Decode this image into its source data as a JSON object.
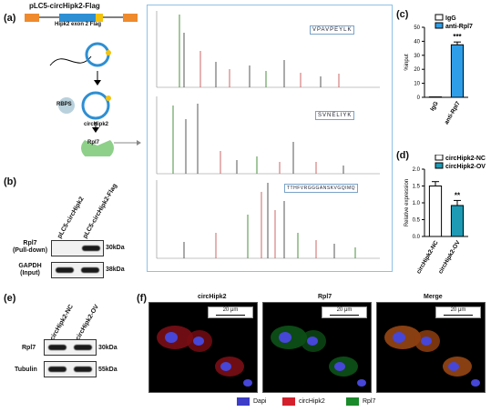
{
  "panels": {
    "a": "(a)",
    "b": "(b)",
    "c": "(c)",
    "d": "(d)",
    "e": "(e)",
    "f": "(f)"
  },
  "panel_a": {
    "construct_label": "pLC5-circHipk2-Flag",
    "exon_label": "Hipk2 exon 2 Flag",
    "rbps_label": "RBPS",
    "circ_label": "circHipk2",
    "rpl7_label": "Rpl7",
    "peptides": [
      "VPAVPEYLK",
      "SVNELIYK",
      "TTHFVRGGGANSKVGQIMQ"
    ]
  },
  "panel_b": {
    "lanes": [
      "pLC5-circHipk2",
      "pLC5-circHipk2-Flag"
    ],
    "rows": [
      {
        "label": "Rpl7\n(Pull-down)",
        "size": "30kDa"
      },
      {
        "label": "GAPDH\n(Input)",
        "size": "38kDa"
      }
    ]
  },
  "panel_e": {
    "lanes": [
      "circHipk2-NC",
      "circHipk2-OV"
    ],
    "rows": [
      {
        "label": "Rpl7",
        "size": "30kDa"
      },
      {
        "label": "Tubulin",
        "size": "55kDa"
      }
    ]
  },
  "panel_f": {
    "titles": [
      "circHipk2",
      "Rpl7",
      "Merge"
    ],
    "scale": "20 μm",
    "legend": [
      {
        "label": "Dapi",
        "color": "#3d3dc8"
      },
      {
        "label": "circHipk2",
        "color": "#d4202c"
      },
      {
        "label": "Rpl7",
        "color": "#1a8a2a"
      }
    ]
  },
  "chart_data": [
    {
      "type": "bar",
      "panel": "c",
      "categories": [
        "IgG",
        "anti-Rpl7"
      ],
      "series": [
        {
          "name": "IgG",
          "values": [
            0.3,
            null
          ]
        },
        {
          "name": "anti-Rpl7",
          "values": [
            null,
            37.5
          ]
        }
      ],
      "errors": [
        0,
        2
      ],
      "ylabel": "%input",
      "yticks": [
        0,
        10,
        20,
        30,
        40,
        50
      ],
      "ylim": [
        0,
        50
      ],
      "annotation": "***",
      "legend": [
        {
          "label": "IgG",
          "color": "#ffffff"
        },
        {
          "label": "anti-Rpl7",
          "color": "#2f9ee8"
        }
      ],
      "legend_position": "top-right"
    },
    {
      "type": "bar",
      "panel": "d",
      "categories": [
        "circHipk2-NC",
        "circHipk2-OV"
      ],
      "series": [
        {
          "name": "circHipk2-NC",
          "values": [
            1.5,
            null
          ]
        },
        {
          "name": "circHipk2-OV",
          "values": [
            null,
            0.92
          ]
        }
      ],
      "errors": [
        0.13,
        0.15
      ],
      "ylabel": "Relative expression",
      "yticks": [
        "0.0",
        "0.5",
        "1.0",
        "1.5",
        "2.0"
      ],
      "ylim": [
        0,
        2
      ],
      "annotation": "**",
      "legend": [
        {
          "label": "circHipk2-NC",
          "color": "#ffffff"
        },
        {
          "label": "circHipk2-OV",
          "color": "#1e9ab5"
        }
      ],
      "legend_position": "top-right"
    }
  ]
}
